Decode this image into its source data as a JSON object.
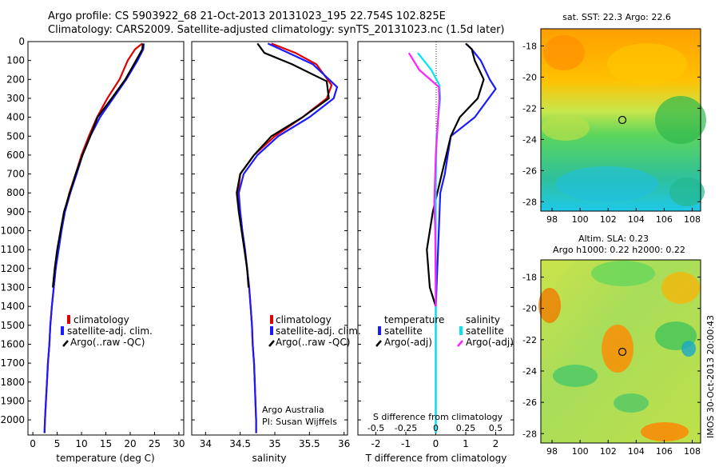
{
  "header": {
    "line1": "Argo profile: CS 5903922_68 21-Oct-2013 20131023_195 22.754S 102.825E",
    "line2": "Climatology: CARS2009. Satellite-adjusted climatology: synTS_20131023.nc (1.5d later)"
  },
  "colors": {
    "red": "#e00000",
    "blue": "#1a1aff",
    "black": "#000000",
    "cyan": "#00e5ee",
    "magenta": "#ff22ff"
  },
  "depth_ticks": [
    0,
    100,
    200,
    300,
    400,
    500,
    600,
    700,
    800,
    900,
    1000,
    1100,
    1200,
    1300,
    1400,
    1500,
    1600,
    1700,
    1800,
    1900,
    2000
  ],
  "panel1": {
    "xlabel": "temperature (deg C)",
    "xticks": [
      0,
      5,
      10,
      15,
      20,
      25,
      30
    ],
    "legend": [
      "climatology",
      "satellite-adj. clim.",
      "Argo(..raw -QC)"
    ]
  },
  "panel2": {
    "xlabel": "salinity",
    "xticks": [
      "34",
      "34.5",
      "35",
      "35.5",
      "36"
    ],
    "legend": [
      "climatology",
      "satellite-adj. clim.",
      "Argo(..raw -QC)"
    ],
    "note1": "Argo Australia",
    "note2": "PI: Susan Wijffels"
  },
  "panel3": {
    "xlabel": "T difference from climatology",
    "top_label": "S difference from climatology",
    "xticks": [
      "-2",
      "-1",
      "0",
      "1",
      "2"
    ],
    "sticks": [
      "-0.5",
      "-0.25",
      "0",
      "0.25",
      "0.5"
    ],
    "legend_temp_title": "temperature",
    "legend_sal_title": "salinity",
    "legend_items": [
      "satellite",
      "Argo(-adj)",
      "satellite",
      "Argo(-adj)"
    ]
  },
  "map1": {
    "title": "sat. SST: 22.3 Argo: 22.6",
    "yticks": [
      "-18",
      "-20",
      "-22",
      "-24",
      "-26",
      "-28"
    ],
    "xticks": [
      "98",
      "100",
      "102",
      "104",
      "106",
      "108"
    ]
  },
  "map2": {
    "title1": "Altim. SLA: 0.23",
    "title2": "Argo h1000: 0.22 h2000: 0.22",
    "yticks": [
      "-18",
      "-20",
      "-22",
      "-24",
      "-26",
      "-28"
    ],
    "xticks": [
      "98",
      "100",
      "102",
      "104",
      "106",
      "108"
    ]
  },
  "side_label": "IMOS 30-Oct-2013 20:00:43",
  "chart_data": [
    {
      "type": "line",
      "xlabel": "temperature (deg C)",
      "ylabel": "",
      "xlim": [
        -1,
        31
      ],
      "ylim": [
        2080,
        0
      ],
      "series": [
        {
          "name": "climatology",
          "color": "red",
          "points": [
            [
              22.5,
              10
            ],
            [
              21,
              40
            ],
            [
              19.5,
              100
            ],
            [
              17.8,
              200
            ],
            [
              15.3,
              300
            ],
            [
              13.2,
              400
            ],
            [
              11.5,
              500
            ],
            [
              10,
              600
            ],
            [
              8.8,
              700
            ],
            [
              7.5,
              800
            ],
            [
              6.5,
              900
            ],
            [
              5.8,
              1000
            ],
            [
              5.2,
              1100
            ],
            [
              4.7,
              1200
            ],
            [
              4.3,
              1300
            ],
            [
              3.9,
              1400
            ],
            [
              3.6,
              1500
            ],
            [
              3.4,
              1600
            ],
            [
              3.1,
              1700
            ],
            [
              2.9,
              1800
            ],
            [
              2.7,
              1900
            ],
            [
              2.5,
              2000
            ],
            [
              2.4,
              2070
            ]
          ]
        },
        {
          "name": "satellite-adj. clim.",
          "color": "blue",
          "points": [
            [
              22.8,
              10
            ],
            [
              22.7,
              40
            ],
            [
              21.5,
              100
            ],
            [
              19.2,
              200
            ],
            [
              16.5,
              300
            ],
            [
              13.8,
              400
            ],
            [
              11.8,
              500
            ],
            [
              10.2,
              600
            ],
            [
              9,
              700
            ],
            [
              7.7,
              800
            ],
            [
              6.6,
              900
            ],
            [
              5.9,
              1000
            ],
            [
              5.3,
              1100
            ],
            [
              4.7,
              1200
            ],
            [
              4.3,
              1300
            ],
            [
              3.9,
              1400
            ],
            [
              3.6,
              1500
            ],
            [
              3.4,
              1600
            ],
            [
              3.1,
              1700
            ],
            [
              2.9,
              1800
            ],
            [
              2.7,
              1900
            ],
            [
              2.5,
              2000
            ],
            [
              2.4,
              2070
            ]
          ]
        },
        {
          "name": "Argo(..raw -QC)",
          "color": "black",
          "points": [
            [
              22.6,
              10
            ],
            [
              22.5,
              40
            ],
            [
              21.2,
              100
            ],
            [
              19,
              200
            ],
            [
              16.2,
              300
            ],
            [
              13.3,
              400
            ],
            [
              11.8,
              500
            ],
            [
              10.2,
              600
            ],
            [
              8.8,
              700
            ],
            [
              7.6,
              800
            ],
            [
              6.4,
              900
            ],
            [
              5.7,
              1000
            ],
            [
              5,
              1100
            ],
            [
              4.5,
              1200
            ],
            [
              4.1,
              1300
            ]
          ]
        }
      ]
    },
    {
      "type": "line",
      "xlabel": "salinity",
      "ylabel": "",
      "xlim": [
        33.8,
        36.05
      ],
      "ylim": [
        2080,
        0
      ],
      "series": [
        {
          "name": "climatology",
          "color": "red",
          "points": [
            [
              34.95,
              10
            ],
            [
              35.3,
              60
            ],
            [
              35.6,
              120
            ],
            [
              35.82,
              230
            ],
            [
              35.75,
              300
            ],
            [
              35.4,
              400
            ],
            [
              35,
              500
            ],
            [
              34.7,
              600
            ],
            [
              34.5,
              700
            ],
            [
              34.47,
              800
            ],
            [
              34.5,
              900
            ],
            [
              34.53,
              1000
            ],
            [
              34.57,
              1100
            ],
            [
              34.6,
              1200
            ],
            [
              34.63,
              1300
            ],
            [
              34.65,
              1400
            ],
            [
              34.67,
              1500
            ],
            [
              34.68,
              1600
            ],
            [
              34.7,
              1700
            ],
            [
              34.71,
              1800
            ],
            [
              34.72,
              1900
            ],
            [
              34.73,
              2000
            ],
            [
              34.73,
              2070
            ]
          ]
        },
        {
          "name": "satellite-adj. clim.",
          "color": "blue",
          "points": [
            [
              34.9,
              10
            ],
            [
              35.2,
              60
            ],
            [
              35.55,
              120
            ],
            [
              35.9,
              240
            ],
            [
              35.85,
              300
            ],
            [
              35.5,
              400
            ],
            [
              35.05,
              500
            ],
            [
              34.75,
              600
            ],
            [
              34.55,
              700
            ],
            [
              34.48,
              800
            ],
            [
              34.5,
              900
            ],
            [
              34.53,
              1000
            ],
            [
              34.57,
              1100
            ],
            [
              34.6,
              1200
            ],
            [
              34.63,
              1300
            ],
            [
              34.65,
              1400
            ],
            [
              34.67,
              1500
            ],
            [
              34.68,
              1600
            ],
            [
              34.7,
              1700
            ],
            [
              34.71,
              1800
            ],
            [
              34.72,
              1900
            ],
            [
              34.73,
              2000
            ],
            [
              34.73,
              2070
            ]
          ]
        },
        {
          "name": "Argo(..raw -QC)",
          "color": "black",
          "points": [
            [
              34.75,
              10
            ],
            [
              34.85,
              60
            ],
            [
              35.25,
              120
            ],
            [
              35.75,
              210
            ],
            [
              35.78,
              300
            ],
            [
              35.4,
              400
            ],
            [
              34.95,
              500
            ],
            [
              34.7,
              600
            ],
            [
              34.5,
              700
            ],
            [
              34.45,
              800
            ],
            [
              34.48,
              900
            ],
            [
              34.52,
              1000
            ],
            [
              34.56,
              1100
            ],
            [
              34.6,
              1200
            ],
            [
              34.62,
              1300
            ]
          ]
        }
      ]
    },
    {
      "type": "line",
      "xlabel": "T difference from climatology",
      "ylabel": "",
      "xlim": [
        -2.6,
        2.6
      ],
      "ylim": [
        2080,
        0
      ],
      "series": [
        {
          "name": "temperature satellite",
          "color": "blue",
          "points": [
            [
              1,
              10
            ],
            [
              1.2,
              40
            ],
            [
              1.5,
              100
            ],
            [
              1.8,
              200
            ],
            [
              2.0,
              250
            ],
            [
              1.3,
              400
            ],
            [
              0.5,
              500
            ],
            [
              0.4,
              600
            ],
            [
              0.3,
              700
            ],
            [
              0.15,
              800
            ],
            [
              0.1,
              1000
            ],
            [
              0,
              1400
            ],
            [
              0,
              2070
            ]
          ]
        },
        {
          "name": "temperature Argo(-adj)",
          "color": "black",
          "points": [
            [
              1,
              10
            ],
            [
              1.2,
              40
            ],
            [
              1.3,
              100
            ],
            [
              1.6,
              200
            ],
            [
              1.4,
              300
            ],
            [
              0.8,
              400
            ],
            [
              0.5,
              500
            ],
            [
              0.2,
              700
            ],
            [
              -0.1,
              900
            ],
            [
              -0.3,
              1100
            ],
            [
              -0.2,
              1300
            ],
            [
              0,
              1400
            ]
          ]
        },
        {
          "name": "salinity satellite",
          "color": "cyan",
          "points": [
            [
              -0.6,
              60
            ],
            [
              -0.15,
              150
            ],
            [
              0.12,
              230
            ],
            [
              0.15,
              300
            ],
            [
              0.02,
              500
            ],
            [
              0,
              800
            ],
            [
              0,
              2070
            ]
          ]
        },
        {
          "name": "salinity Argo(-adj)",
          "color": "magenta",
          "points": [
            [
              -0.9,
              60
            ],
            [
              -0.55,
              150
            ],
            [
              0.1,
              240
            ],
            [
              0.12,
              300
            ],
            [
              0,
              600
            ],
            [
              -0.05,
              850
            ],
            [
              -0.02,
              1000
            ],
            [
              0,
              1400
            ]
          ]
        }
      ]
    }
  ]
}
